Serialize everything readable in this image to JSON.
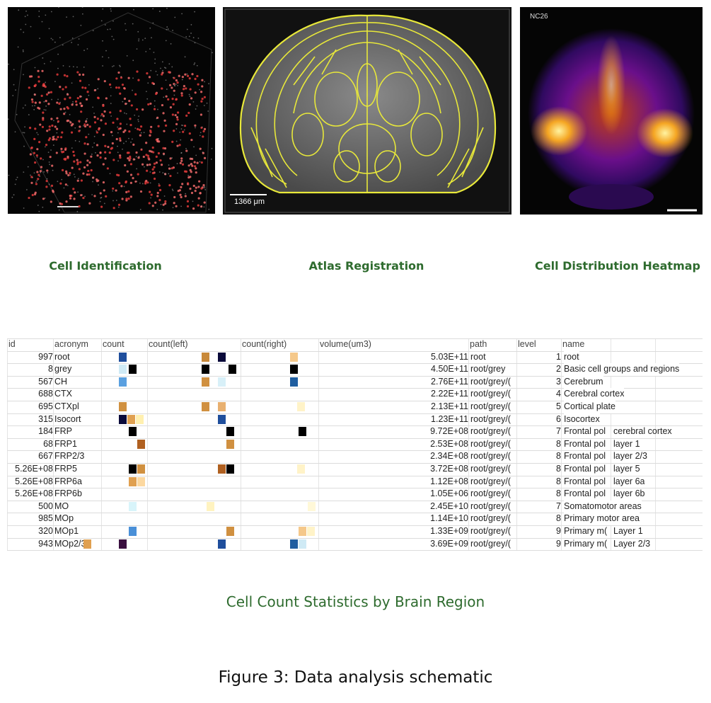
{
  "panels": [
    {
      "caption": "Cell Identification"
    },
    {
      "caption": "Atlas Registration",
      "scale_label": "1366 μm"
    },
    {
      "caption": "Cell Distribution Heatmap",
      "sample_label": "NC26"
    }
  ],
  "table": {
    "headers": [
      "id",
      "acronym",
      "count",
      "count(left)",
      "count(right)",
      "volume(um3)",
      "path",
      "level",
      "name"
    ],
    "rows": [
      [
        "997",
        "root",
        "5.03E+11",
        "root",
        "1",
        "root"
      ],
      [
        "8",
        "grey",
        "4.50E+11",
        "root/grey",
        "2",
        "Basic cell groups and regions"
      ],
      [
        "567",
        "CH",
        "2.76E+11",
        "root/grey/(",
        "3",
        "Cerebrum"
      ],
      [
        "688",
        "CTX",
        "2.22E+11",
        "root/grey/(",
        "4",
        "Cerebral cortex"
      ],
      [
        "695",
        "CTXpl",
        "2.13E+11",
        "root/grey/(",
        "5",
        "Cortical plate"
      ],
      [
        "315",
        "Isocort",
        "1.23E+11",
        "root/grey/(",
        "6",
        "Isocortex"
      ],
      [
        "184",
        "FRP",
        "9.72E+08",
        "root/grey/(",
        "7",
        "Frontal pol",
        "cerebral cortex"
      ],
      [
        "68",
        "FRP1",
        "2.53E+08",
        "root/grey/(",
        "8",
        "Frontal pol",
        "layer 1"
      ],
      [
        "667",
        "FRP2/3",
        "2.34E+08",
        "root/grey/(",
        "8",
        "Frontal pol",
        "layer 2/3"
      ],
      [
        "5.26E+08",
        "FRP5",
        "3.72E+08",
        "root/grey/(",
        "8",
        "Frontal pol",
        "layer 5"
      ],
      [
        "5.26E+08",
        "FRP6a",
        "1.12E+08",
        "root/grey/(",
        "8",
        "Frontal pol",
        "layer 6a"
      ],
      [
        "5.26E+08",
        "FRP6b",
        "1.05E+06",
        "root/grey/(",
        "8",
        "Frontal pol",
        "layer 6b"
      ],
      [
        "500",
        "MO",
        "2.45E+10",
        "root/grey/(",
        "7",
        "Somatomotor areas"
      ],
      [
        "985",
        "MOp",
        "1.14E+10",
        "root/grey/(",
        "8",
        "Primary motor area"
      ],
      [
        "320",
        "MOp1",
        "1.33E+09",
        "root/grey/(",
        "9",
        "Primary m(",
        "Layer 1"
      ],
      [
        "943",
        "MOp2/3",
        "3.69E+09",
        "root/grey/(",
        "9",
        "Primary m(",
        "Layer 2/3"
      ]
    ]
  },
  "table_caption": "Cell Count Statistics by Brain Region",
  "figure_caption": "Figure 3: Data analysis schematic"
}
